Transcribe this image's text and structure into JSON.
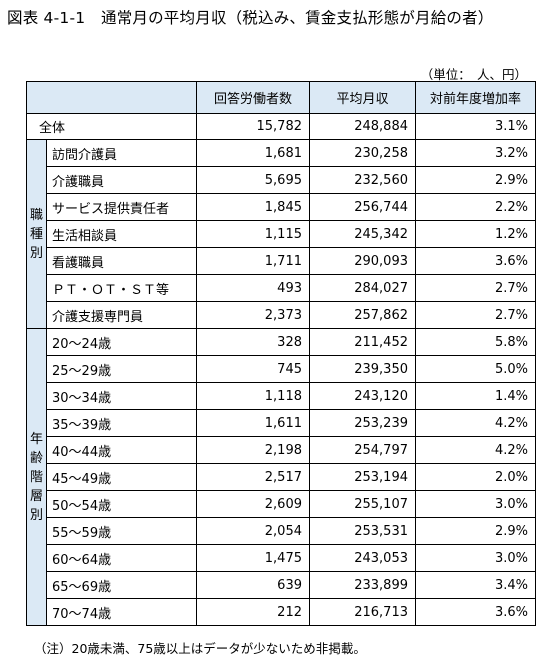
{
  "title": "図表 4-1-1　通常月の平均月収（税込み、賃金支払形態が月給の者）",
  "unit": "（単位：　人、円）",
  "headers": {
    "respondents": "回答労働者数",
    "avg_monthly": "平均月収",
    "yoy": "対前年度増加率"
  },
  "total": {
    "label": "全体",
    "respondents": "15,782",
    "avg": "248,884",
    "yoy": "3.1%"
  },
  "occupation": {
    "group_label": [
      "職",
      "種",
      "別"
    ],
    "rows": [
      {
        "label": "訪問介護員",
        "respondents": "1,681",
        "avg": "230,258",
        "yoy": "3.2%"
      },
      {
        "label": "介護職員",
        "respondents": "5,695",
        "avg": "232,560",
        "yoy": "2.9%"
      },
      {
        "label": "サービス提供責任者",
        "respondents": "1,845",
        "avg": "256,744",
        "yoy": "2.2%"
      },
      {
        "label": "生活相談員",
        "respondents": "1,115",
        "avg": "245,342",
        "yoy": "1.2%"
      },
      {
        "label": "看護職員",
        "respondents": "1,711",
        "avg": "290,093",
        "yoy": "3.6%"
      },
      {
        "label": "ＰＴ・ＯＴ・ＳＴ等",
        "respondents": "493",
        "avg": "284,027",
        "yoy": "2.7%"
      },
      {
        "label": "介護支援専門員",
        "respondents": "2,373",
        "avg": "257,862",
        "yoy": "2.7%"
      }
    ]
  },
  "age": {
    "group_label": [
      "年",
      "齢",
      "階",
      "層",
      "別"
    ],
    "rows": [
      {
        "label": "20～24歳",
        "respondents": "328",
        "avg": "211,452",
        "yoy": "5.8%"
      },
      {
        "label": "25～29歳",
        "respondents": "745",
        "avg": "239,350",
        "yoy": "5.0%"
      },
      {
        "label": "30～34歳",
        "respondents": "1,118",
        "avg": "243,120",
        "yoy": "1.4%"
      },
      {
        "label": "35～39歳",
        "respondents": "1,611",
        "avg": "253,239",
        "yoy": "4.2%"
      },
      {
        "label": "40～44歳",
        "respondents": "2,198",
        "avg": "254,797",
        "yoy": "4.2%"
      },
      {
        "label": "45～49歳",
        "respondents": "2,517",
        "avg": "253,194",
        "yoy": "2.0%"
      },
      {
        "label": "50～54歳",
        "respondents": "2,609",
        "avg": "255,107",
        "yoy": "3.0%"
      },
      {
        "label": "55～59歳",
        "respondents": "2,054",
        "avg": "253,531",
        "yoy": "2.9%"
      },
      {
        "label": "60～64歳",
        "respondents": "1,475",
        "avg": "243,053",
        "yoy": "3.0%"
      },
      {
        "label": "65～69歳",
        "respondents": "639",
        "avg": "233,899",
        "yoy": "3.4%"
      },
      {
        "label": "70～74歳",
        "respondents": "212",
        "avg": "216,713",
        "yoy": "3.6%"
      }
    ]
  },
  "note": "（注）20歳未満、75歳以上はデータが少ないため非掲載。"
}
